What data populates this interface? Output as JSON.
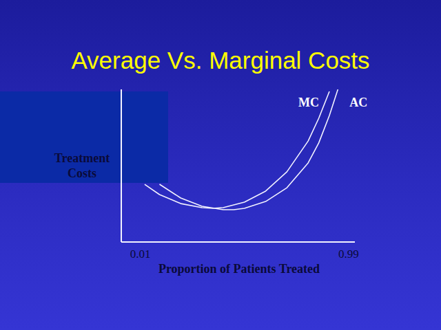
{
  "chart_data": {
    "type": "line",
    "title": "Average Vs. Marginal Costs",
    "x_label": "Proportion of Patients Treated",
    "y_label": "Treatment Costs",
    "xlim": [
      -0.08,
      1.02
    ],
    "xticks": [
      0.01,
      0.99
    ],
    "ylim": [
      0,
      110
    ],
    "yticks": [],
    "tick_labels": "x",
    "grid": false,
    "series": [
      {
        "name": "MC",
        "color": "#f2f2ff",
        "x": [
          0.03,
          0.1,
          0.2,
          0.3,
          0.35,
          0.4,
          0.5,
          0.6,
          0.7,
          0.8,
          0.85,
          0.9
        ],
        "values": [
          41.6,
          34.2,
          27.7,
          24.8,
          24.3,
          24.8,
          28.7,
          36.7,
          50.6,
          72.8,
          89.2,
          108.5
        ]
      },
      {
        "name": "AC",
        "color": "#f2f2ff",
        "x": [
          0.1,
          0.2,
          0.3,
          0.4,
          0.45,
          0.5,
          0.6,
          0.7,
          0.8,
          0.85,
          0.9,
          0.94
        ],
        "values": [
          41.6,
          31.7,
          25.8,
          23.3,
          23.3,
          24.3,
          29.2,
          39.1,
          57.0,
          71.4,
          91.2,
          110
        ]
      }
    ]
  }
}
